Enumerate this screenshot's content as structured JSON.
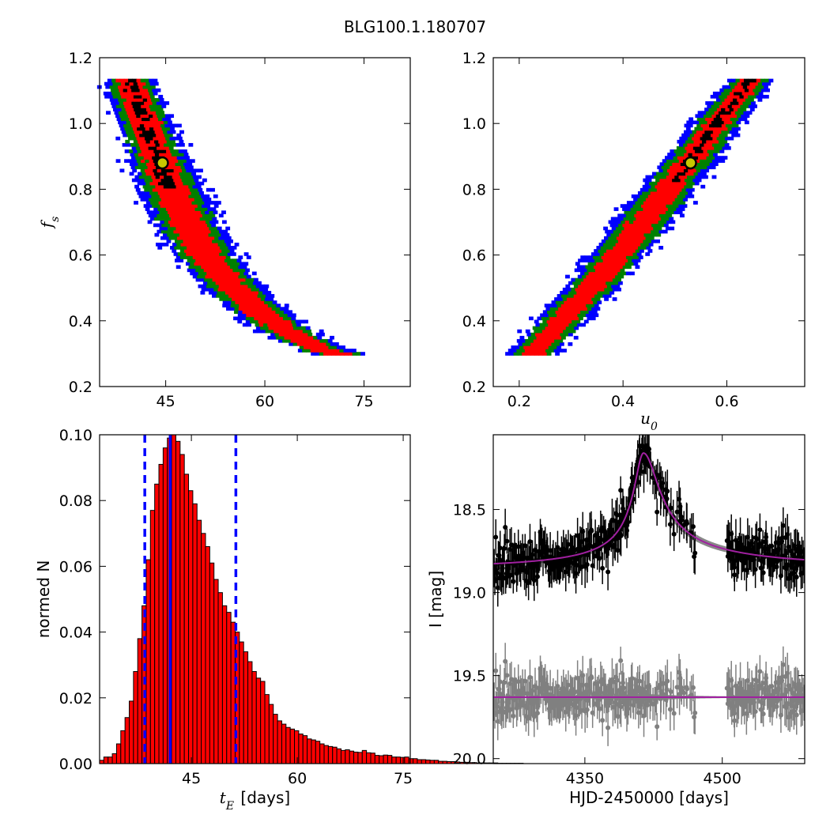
{
  "title": "BLG100.1.180707",
  "colors": {
    "sigma1": "#000000",
    "sigma2": "#ff0000",
    "sigma3": "#008000",
    "sigma4": "#0000ff",
    "best_fit_fill": "#c8c800",
    "model_line": "#a020a0",
    "residual_points": "#808080",
    "hist_fill": "#ff0000",
    "hist_lines": "#0000ff"
  },
  "chart_data": [
    {
      "id": "tE_fs",
      "type": "heatmap",
      "xlabel": "",
      "ylabel": "f_s",
      "ylabel_math": {
        "base": "f",
        "sub": "s"
      },
      "xlim": [
        35,
        82
      ],
      "ylim": [
        0.2,
        1.2
      ],
      "xticks": [
        45,
        60,
        75
      ],
      "yticks": [
        0.2,
        0.4,
        0.6,
        0.8,
        1.0,
        1.2
      ],
      "ytick_labels": [
        "0.2",
        "0.4",
        "0.6",
        "0.8",
        "1.0",
        "1.2"
      ],
      "best_fit": {
        "x": 44.5,
        "y": 0.88
      },
      "ridge": [
        [
          39.5,
          1.14
        ],
        [
          41.0,
          1.05
        ],
        [
          42.5,
          0.97
        ],
        [
          44.0,
          0.89
        ],
        [
          46.0,
          0.79
        ],
        [
          48.5,
          0.69
        ],
        [
          51.0,
          0.6
        ],
        [
          54.0,
          0.53
        ],
        [
          57.5,
          0.46
        ],
        [
          61.0,
          0.4
        ],
        [
          65.0,
          0.35
        ],
        [
          69.0,
          0.31
        ],
        [
          73.0,
          0.29
        ]
      ],
      "halfwidths": {
        "sigma1": 1.2,
        "sigma2": 2.6,
        "sigma3": 4.0,
        "sigma4": 5.3
      }
    },
    {
      "id": "u0_fs",
      "type": "heatmap",
      "xlabel": "u_0",
      "xlabel_math": {
        "base": "u",
        "sub": "0"
      },
      "ylabel": "",
      "xlim": [
        0.15,
        0.75
      ],
      "ylim": [
        0.2,
        1.2
      ],
      "xticks": [
        0.2,
        0.4,
        0.6
      ],
      "xtick_labels": [
        "0.2",
        "0.4",
        "0.6"
      ],
      "yticks": [
        0.2,
        0.4,
        0.6,
        0.8,
        1.0,
        1.2
      ],
      "ytick_labels": [
        "0.2",
        "0.4",
        "0.6",
        "0.8",
        "1.0",
        "1.2"
      ],
      "best_fit": {
        "x": 0.53,
        "y": 0.88
      },
      "ridge": [
        [
          0.22,
          0.29
        ],
        [
          0.26,
          0.36
        ],
        [
          0.3,
          0.43
        ],
        [
          0.35,
          0.52
        ],
        [
          0.4,
          0.62
        ],
        [
          0.45,
          0.72
        ],
        [
          0.5,
          0.83
        ],
        [
          0.55,
          0.93
        ],
        [
          0.59,
          1.02
        ],
        [
          0.63,
          1.1
        ],
        [
          0.65,
          1.14
        ]
      ],
      "halfwidths": {
        "sigma1": 0.012,
        "sigma2": 0.028,
        "sigma3": 0.045,
        "sigma4": 0.06
      }
    },
    {
      "id": "tE_hist",
      "type": "bar",
      "xlabel": "t_E [days]",
      "xlabel_math": {
        "base": "t",
        "sub": "E",
        "suffix": " [days]"
      },
      "ylabel": "normed N",
      "xlim": [
        32,
        76
      ],
      "ylim": [
        0,
        0.1
      ],
      "xticks": [
        45,
        60,
        75
      ],
      "yticks": [
        0,
        0.02,
        0.04,
        0.06,
        0.08,
        0.1
      ],
      "ytick_labels": [
        "0.00",
        "0.02",
        "0.04",
        "0.06",
        "0.08",
        "0.10"
      ],
      "bin_start": 32,
      "bin_width": 0.6,
      "values": [
        0.001,
        0.002,
        0.002,
        0.003,
        0.006,
        0.01,
        0.014,
        0.019,
        0.028,
        0.038,
        0.048,
        0.062,
        0.077,
        0.085,
        0.091,
        0.096,
        0.099,
        0.1,
        0.098,
        0.094,
        0.088,
        0.083,
        0.079,
        0.074,
        0.07,
        0.066,
        0.061,
        0.056,
        0.052,
        0.048,
        0.046,
        0.043,
        0.04,
        0.037,
        0.034,
        0.031,
        0.028,
        0.026,
        0.025,
        0.021,
        0.018,
        0.015,
        0.013,
        0.012,
        0.011,
        0.0105,
        0.01,
        0.009,
        0.0085,
        0.0075,
        0.0072,
        0.0068,
        0.006,
        0.0055,
        0.0052,
        0.005,
        0.0045,
        0.004,
        0.0042,
        0.0038,
        0.0035,
        0.0034,
        0.004,
        0.0033,
        0.0032,
        0.0025,
        0.0024,
        0.0026,
        0.0025,
        0.002,
        0.002,
        0.0019,
        0.002,
        0.0015,
        0.0015,
        0.0012,
        0.0012,
        0.0011,
        0.001,
        0.001,
        0.0007,
        0.0007,
        0.0006,
        0.0006,
        0.0005,
        0.0004,
        0.0004,
        0.0003,
        0.0003,
        0.0002,
        0.0002,
        0.0002,
        0.0002,
        0.0002,
        0.0001,
        0.0001,
        0.0001,
        0.0001,
        0.0001,
        0.0001
      ],
      "median": 42.0,
      "lower": 38.4,
      "upper": 51.3
    },
    {
      "id": "lightcurve",
      "type": "scatter",
      "xlabel": "HJD-2450000 [days]",
      "ylabel": "I [mag]",
      "xlim": [
        4250,
        4590
      ],
      "ylim": [
        20.03,
        18.05
      ],
      "xticks": [
        4350,
        4500
      ],
      "yticks": [
        18.5,
        19.0,
        19.5,
        20.0
      ],
      "ytick_labels": [
        "18.5",
        "19.0",
        "19.5",
        "20.0"
      ],
      "model": {
        "t0": 4414,
        "baseline": 18.87,
        "peak": 18.16,
        "rise_width": 18,
        "decay_width": 30
      },
      "residual_baseline": 19.63,
      "gap": [
        4470,
        4505
      ]
    }
  ]
}
